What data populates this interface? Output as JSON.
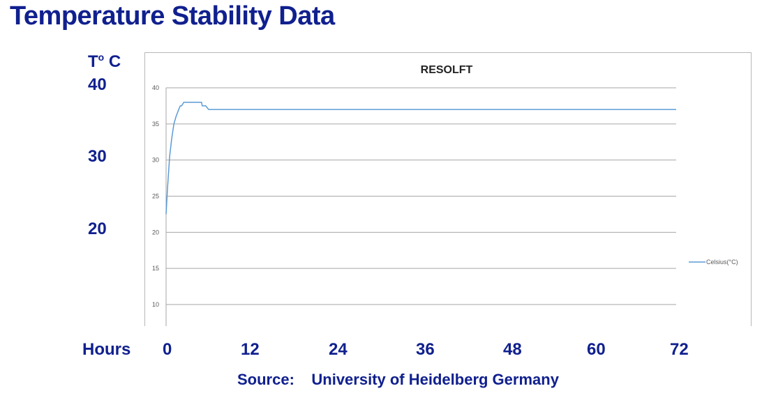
{
  "slide": {
    "title": "Temperature Stability Data",
    "y_unit": "T",
    "y_unit_sup": "o",
    "y_unit_suffix": " C",
    "y_labels": [
      "40",
      "30",
      "20"
    ],
    "x_title": "Hours",
    "x_labels": [
      "0",
      "12",
      "24",
      "36",
      "48",
      "60",
      "72"
    ],
    "source_label": "Source:",
    "source_text": "University of Heidelberg Germany",
    "accent_color": "#10208e"
  },
  "chart_data": {
    "type": "line",
    "title": "RESOLFT",
    "xlabel": "",
    "ylabel": "",
    "ylim": [
      10,
      40
    ],
    "xlim": [
      0,
      72
    ],
    "yticks": [
      10,
      15,
      20,
      25,
      30,
      35,
      40
    ],
    "grid": true,
    "legend_position": "right",
    "series": [
      {
        "name": "Celsius(°C)",
        "color": "#5b9bd5",
        "x": [
          0,
          0.2,
          0.5,
          0.8,
          1.1,
          1.4,
          1.7,
          2.0,
          2.2,
          2.5,
          3.0,
          3.5,
          4.0,
          4.5,
          5.0,
          5.1,
          5.6,
          6.0,
          72
        ],
        "y": [
          22.5,
          26,
          30.5,
          33,
          35,
          36,
          36.8,
          37.5,
          37.5,
          38,
          38,
          38,
          38,
          38,
          38,
          37.5,
          37.5,
          37,
          37
        ]
      }
    ]
  }
}
